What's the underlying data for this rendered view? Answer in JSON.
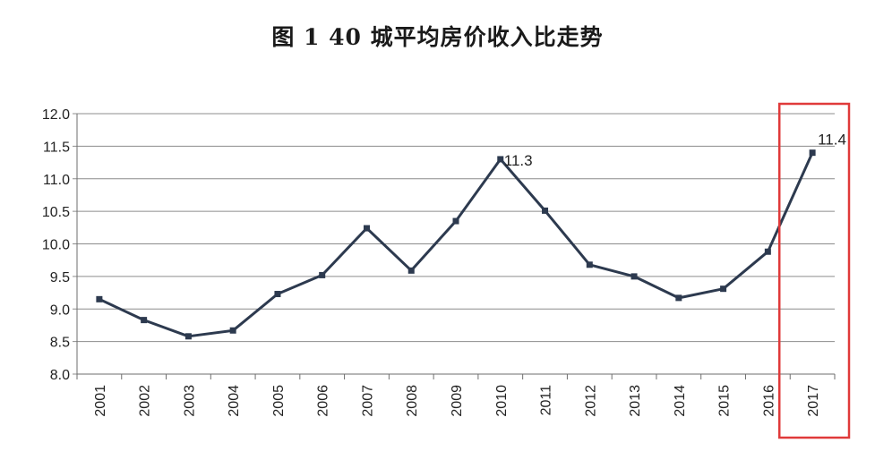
{
  "title": "图 1    40 城平均房价收入比走势",
  "chart_data": {
    "type": "line",
    "title": "图 1    40 城平均房价收入比走势",
    "xlabel": "",
    "ylabel": "",
    "categories": [
      "2001",
      "2002",
      "2003",
      "2004",
      "2005",
      "2006",
      "2007",
      "2008",
      "2009",
      "2010",
      "2011",
      "2012",
      "2013",
      "2014",
      "2015",
      "2016",
      "2017"
    ],
    "series": [
      {
        "values": [
          9.15,
          8.83,
          8.58,
          8.67,
          9.23,
          9.52,
          10.24,
          9.59,
          10.35,
          11.3,
          10.51,
          9.68,
          9.5,
          9.17,
          9.31,
          9.88,
          11.4
        ]
      }
    ],
    "ylim": [
      8.0,
      12.0
    ],
    "yticks": [
      "8.0",
      "8.5",
      "9.0",
      "9.5",
      "10.0",
      "10.5",
      "11.0",
      "11.5",
      "12.0"
    ],
    "grid": true,
    "annotations": [
      {
        "category": "2010",
        "text": "11.3"
      },
      {
        "category": "2017",
        "text": "11.4"
      }
    ],
    "highlight_category": "2017",
    "colors": {
      "line": "#2d3a4f",
      "grid": "#8c8c8c",
      "highlight": "#e03a3a"
    }
  }
}
